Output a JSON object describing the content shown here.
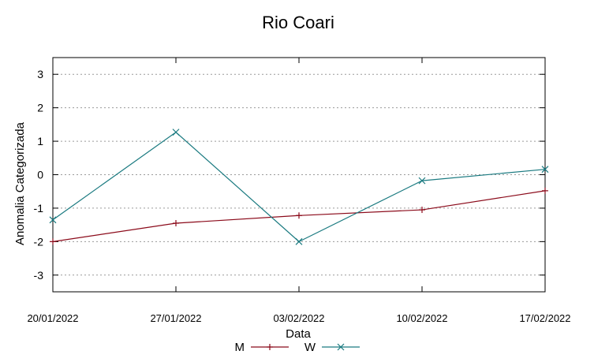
{
  "chart_data": {
    "type": "line",
    "title": "Rio Coari",
    "xlabel": "Data",
    "ylabel": "Anomalia Categorizada",
    "categories": [
      "20/01/2022",
      "27/01/2022",
      "03/02/2022",
      "10/02/2022",
      "17/02/2022"
    ],
    "ylim": [
      -3.5,
      3.5
    ],
    "yticks": [
      -3,
      -2,
      -1,
      0,
      1,
      2,
      3
    ],
    "grid": "horizontal dotted",
    "legend_position": "bottom-center",
    "series": [
      {
        "name": "M",
        "color": "#8b0a1a",
        "marker": "plus",
        "values": [
          -2.0,
          -1.45,
          -1.22,
          -1.05,
          -0.48
        ]
      },
      {
        "name": "W",
        "color": "#1a7a80",
        "marker": "x",
        "values": [
          -1.35,
          1.27,
          -2.0,
          -0.18,
          0.16
        ]
      }
    ]
  }
}
